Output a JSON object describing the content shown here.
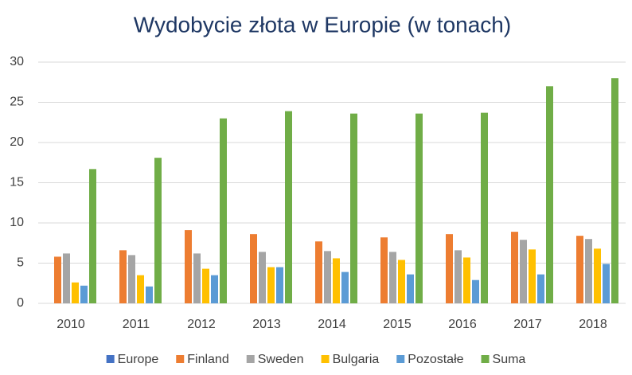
{
  "chart_data": {
    "type": "bar",
    "title": "Wydobycie złota w Europie (w tonach)",
    "categories": [
      "2010",
      "2011",
      "2012",
      "2013",
      "2014",
      "2015",
      "2016",
      "2017",
      "2018"
    ],
    "series": [
      {
        "name": "Europe",
        "color": "#4472c4",
        "values": [
          null,
          null,
          null,
          null,
          null,
          null,
          null,
          null,
          null
        ]
      },
      {
        "name": "Finland",
        "color": "#ed7d31",
        "values": [
          5.8,
          6.6,
          9.1,
          8.6,
          7.7,
          8.2,
          8.6,
          8.9,
          8.4
        ]
      },
      {
        "name": "Sweden",
        "color": "#a5a5a5",
        "values": [
          6.2,
          6.0,
          6.2,
          6.4,
          6.5,
          6.4,
          6.6,
          7.9,
          8.0
        ]
      },
      {
        "name": "Bulgaria",
        "color": "#ffc000",
        "values": [
          2.6,
          3.5,
          4.3,
          4.5,
          5.6,
          5.4,
          5.7,
          6.7,
          6.8
        ]
      },
      {
        "name": "Pozostałe",
        "color": "#5b9bd5",
        "values": [
          2.2,
          2.1,
          3.5,
          4.5,
          3.9,
          3.6,
          2.9,
          3.6,
          4.9
        ]
      },
      {
        "name": "Suma",
        "color": "#70ad47",
        "values": [
          16.7,
          18.1,
          23.0,
          23.9,
          23.6,
          23.6,
          23.7,
          27.0,
          28.0
        ]
      }
    ],
    "ylim": [
      0,
      30
    ],
    "yticks": [
      0,
      5,
      10,
      15,
      20,
      25,
      30
    ],
    "grid": true,
    "legend": "bottom"
  }
}
